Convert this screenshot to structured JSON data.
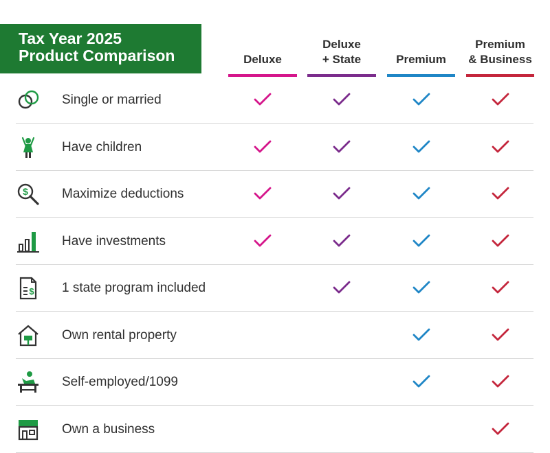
{
  "title": {
    "line1": "Tax Year 2025",
    "line2": "Product Comparison"
  },
  "products": [
    {
      "key": "deluxe",
      "label": "Deluxe",
      "color": "#d5168b"
    },
    {
      "key": "deluxe_state",
      "label": "Deluxe\n+ State",
      "color": "#7b2c8c"
    },
    {
      "key": "premium",
      "label": "Premium",
      "color": "#1f86c6"
    },
    {
      "key": "premium_business",
      "label": "Premium\n& Business",
      "color": "#c4263c"
    }
  ],
  "accent_color": "#1e7a32",
  "rows": [
    {
      "label": "Single or married",
      "icon": "rings-icon",
      "included": [
        true,
        true,
        true,
        true
      ]
    },
    {
      "label": "Have children",
      "icon": "child-icon",
      "included": [
        true,
        true,
        true,
        true
      ]
    },
    {
      "label": "Maximize deductions",
      "icon": "magnifier-dollar-icon",
      "included": [
        true,
        true,
        true,
        true
      ]
    },
    {
      "label": "Have investments",
      "icon": "bar-chart-icon",
      "included": [
        true,
        true,
        true,
        true
      ]
    },
    {
      "label": "1 state program included",
      "icon": "document-dollar-icon",
      "included": [
        false,
        true,
        true,
        true
      ]
    },
    {
      "label": "Own rental property",
      "icon": "house-sign-icon",
      "included": [
        false,
        false,
        true,
        true
      ]
    },
    {
      "label": "Self-employed/1099",
      "icon": "person-desk-icon",
      "included": [
        false,
        false,
        true,
        true
      ]
    },
    {
      "label": "Own a business",
      "icon": "storefront-icon",
      "included": [
        false,
        false,
        false,
        true
      ]
    }
  ]
}
